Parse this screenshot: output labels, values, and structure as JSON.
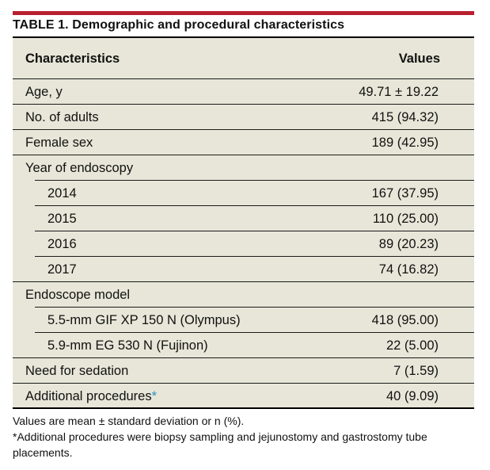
{
  "table": {
    "title": "TABLE 1. Demographic and procedural characteristics",
    "header": {
      "characteristics": "Characteristics",
      "values": "Values"
    },
    "rows": [
      {
        "label": "Age, y",
        "value": "49.71 ± 19.22"
      },
      {
        "label": "No. of adults",
        "value": "415 (94.32)"
      },
      {
        "label": "Female sex",
        "value": "189 (42.95)"
      },
      {
        "label": "Year of endoscopy",
        "value": ""
      },
      {
        "label": "2014",
        "value": "167 (37.95)"
      },
      {
        "label": "2015",
        "value": "110 (25.00)"
      },
      {
        "label": "2016",
        "value": "89 (20.23)"
      },
      {
        "label": "2017",
        "value": "74 (16.82)"
      },
      {
        "label": "Endoscope model",
        "value": ""
      },
      {
        "label": "5.5-mm GIF XP 150 N (Olympus)",
        "value": "418 (95.00)"
      },
      {
        "label": "5.9-mm EG 530 N (Fujinon)",
        "value": "22 (5.00)"
      },
      {
        "label": "Need for sedation",
        "value": "7 (1.59)"
      },
      {
        "label": "Additional procedures",
        "marker": "*",
        "value": "40 (9.09)"
      }
    ]
  },
  "footnotes": {
    "note1": "Values are mean ± standard deviation or n (%).",
    "note2": "*Additional procedures were biopsy sampling and jejunostomy and gastrostomy tube placements."
  },
  "colors": {
    "accent_bar": "#b8202f",
    "table_background": "#e7e6d8",
    "footnote_marker": "#2a8fc6"
  }
}
